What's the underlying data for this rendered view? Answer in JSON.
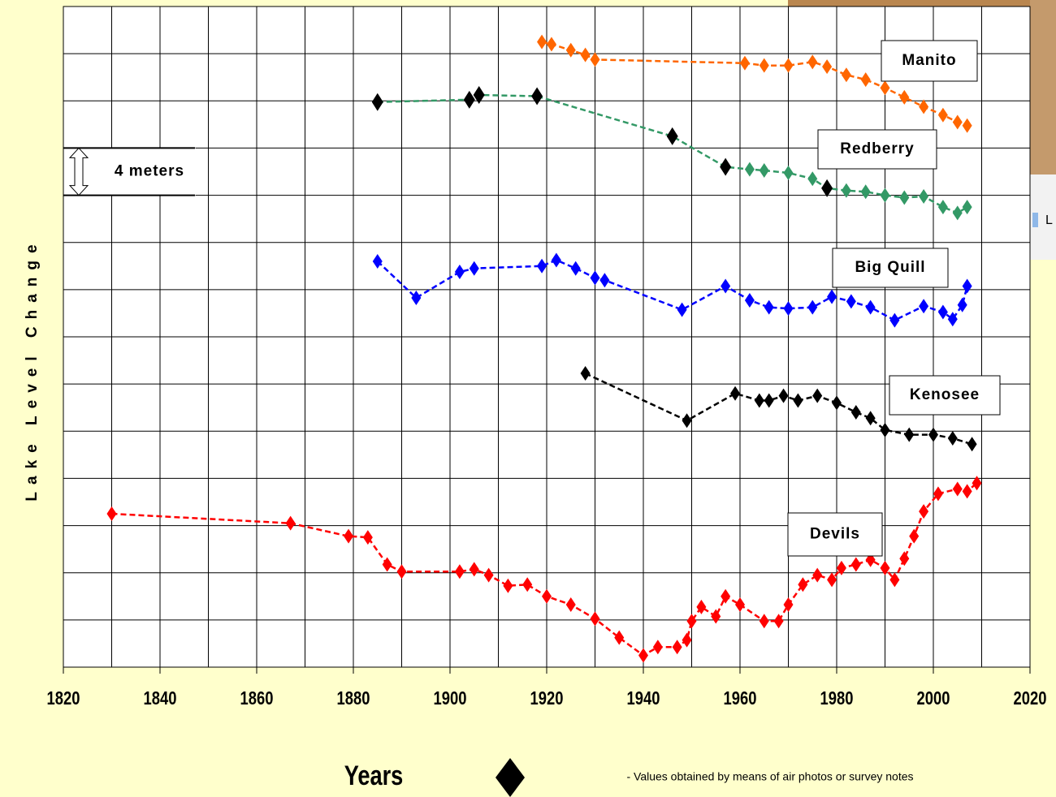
{
  "chart_data": {
    "type": "line",
    "x_label": "Years",
    "y_label": "Lake Level Change",
    "scale_note": "4 meters",
    "scale_span": 4,
    "marker_note": "- Values obtained by means of air photos or survey notes",
    "map_label": "L",
    "xlim": [
      1820,
      2020
    ],
    "xticks": [
      1820,
      1840,
      1860,
      1880,
      1900,
      1920,
      1940,
      1960,
      1980,
      2000,
      2020
    ],
    "xminorticks": [
      1830,
      1850,
      1870,
      1890,
      1910,
      1930,
      1950,
      1970,
      1990,
      2010
    ],
    "ylim": [
      0,
      56
    ],
    "yticks": [
      0,
      4,
      8,
      12,
      16,
      20,
      24,
      28,
      32,
      36,
      40,
      44,
      48,
      52,
      56
    ],
    "grid": true,
    "series": [
      {
        "name": "Manito",
        "color": "#ff6600",
        "x": [
          1919,
          1921,
          1925,
          1928,
          1930,
          1961,
          1965,
          1970,
          1975,
          1978,
          1982,
          1986,
          1990,
          1994,
          1998,
          2002,
          2005,
          2007
        ],
        "values": [
          53.0,
          52.8,
          52.3,
          51.9,
          51.5,
          51.2,
          51.0,
          51.0,
          51.3,
          50.9,
          50.2,
          49.8,
          49.1,
          48.3,
          47.5,
          46.8,
          46.2,
          45.9
        ]
      },
      {
        "name": "Redberry",
        "color": "#339966",
        "x": [
          1885,
          1904,
          1906,
          1918,
          1946,
          1957,
          1962,
          1965,
          1970,
          1975,
          1978,
          1982,
          1986,
          1990,
          1994,
          1998,
          2002,
          2005,
          2007
        ],
        "values": [
          47.9,
          48.1,
          48.5,
          48.4,
          45.0,
          42.4,
          42.2,
          42.1,
          41.9,
          41.4,
          40.6,
          40.4,
          40.3,
          40.0,
          39.8,
          39.9,
          39.0,
          38.5,
          39.0
        ],
        "point_colors": [
          "#000000",
          "#000000",
          "#000000",
          "#000000",
          "#000000",
          "#000000",
          "#339966",
          "#339966",
          "#339966",
          "#339966",
          "#000000",
          "#339966",
          "#339966",
          "#339966",
          "#339966",
          "#339966",
          "#339966",
          "#339966",
          "#339966"
        ]
      },
      {
        "name": "Big Quill",
        "color": "#0000ff",
        "x": [
          1885,
          1893,
          1902,
          1905,
          1919,
          1922,
          1926,
          1930,
          1932,
          1948,
          1957,
          1962,
          1966,
          1970,
          1975,
          1979,
          1983,
          1987,
          1992,
          1998,
          2002,
          2004,
          2006,
          2007
        ],
        "values": [
          34.4,
          31.3,
          33.5,
          33.8,
          34.0,
          34.5,
          33.8,
          33.0,
          32.8,
          30.3,
          32.3,
          31.1,
          30.5,
          30.4,
          30.5,
          31.4,
          31.0,
          30.5,
          29.4,
          30.6,
          30.1,
          29.5,
          30.7,
          32.3
        ]
      },
      {
        "name": "Kenosee",
        "color": "#000000",
        "x": [
          1928,
          1949,
          1959,
          1964,
          1966,
          1969,
          1972,
          1976,
          1980,
          1984,
          1987,
          1990,
          1995,
          2000,
          2004,
          2008
        ],
        "values": [
          24.9,
          20.9,
          23.2,
          22.6,
          22.6,
          23.0,
          22.6,
          23.0,
          22.4,
          21.6,
          21.1,
          20.1,
          19.7,
          19.7,
          19.4,
          18.9
        ]
      },
      {
        "name": "Devils",
        "color": "#ff0000",
        "x": [
          1830,
          1867,
          1879,
          1883,
          1887,
          1890,
          1902,
          1905,
          1908,
          1912,
          1916,
          1920,
          1925,
          1930,
          1935,
          1940,
          1943,
          1947,
          1949,
          1950,
          1952,
          1955,
          1957,
          1960,
          1965,
          1968,
          1970,
          1973,
          1976,
          1979,
          1981,
          1984,
          1987,
          1990,
          1992,
          1994,
          1996,
          1998,
          2001,
          2005,
          2007,
          2009
        ],
        "values": [
          13.0,
          12.2,
          11.1,
          11.0,
          8.7,
          8.1,
          8.1,
          8.3,
          7.8,
          6.9,
          7.0,
          6.0,
          5.3,
          4.1,
          2.5,
          1.0,
          1.7,
          1.7,
          2.3,
          3.9,
          5.1,
          4.3,
          6.0,
          5.3,
          3.9,
          3.9,
          5.3,
          7.0,
          7.8,
          7.4,
          8.4,
          8.7,
          9.1,
          8.4,
          7.4,
          9.2,
          11.1,
          13.2,
          14.7,
          15.1,
          14.9,
          15.6
        ]
      }
    ]
  }
}
